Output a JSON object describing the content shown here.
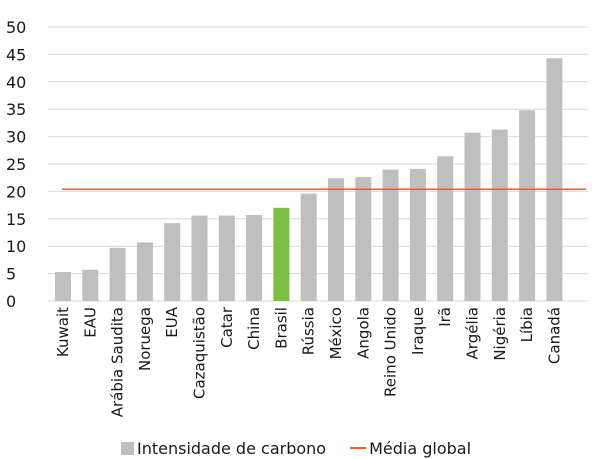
{
  "chart_data": {
    "type": "bar",
    "categories": [
      "Kuwait",
      "EAU",
      "Arábia Saudita",
      "Noruega",
      "EUA",
      "Cazaquistão",
      "Catar",
      "China",
      "Brasil",
      "Rússia",
      "México",
      "Angola",
      "Reino Unido",
      "Iraque",
      "Irã",
      "Argélia",
      "Nigéria",
      "Líbia",
      "Canadá"
    ],
    "series": [
      {
        "name": "Intensidade de carbono",
        "values": [
          5.3,
          5.7,
          9.7,
          10.7,
          14.2,
          15.6,
          15.6,
          15.7,
          17.0,
          19.6,
          22.4,
          22.6,
          24.0,
          24.1,
          26.4,
          30.7,
          31.3,
          34.8,
          44.3
        ]
      }
    ],
    "reference_line": {
      "name": "Média global",
      "value": 20.4
    },
    "highlight_category": "Brasil",
    "yticks": [
      "0",
      "5",
      "10",
      "15",
      "20",
      "25",
      "30",
      "35",
      "40",
      "45",
      "50"
    ],
    "ylim": [
      0,
      50
    ],
    "grid": true,
    "legend_position": "bottom",
    "colors": {
      "bar": "#BFBFBF",
      "highlight": "#7AC143",
      "reference": "#E8602C",
      "grid": "#D9D9D9"
    }
  },
  "legend": {
    "bar_label": "Intensidade de carbono",
    "line_label": "Média global"
  }
}
